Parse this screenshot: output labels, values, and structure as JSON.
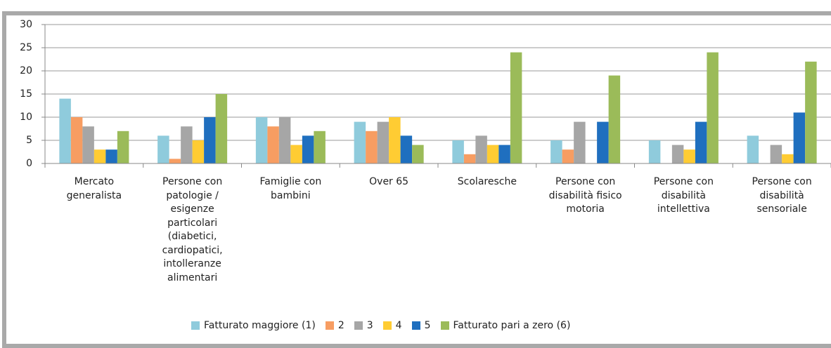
{
  "chart_data": {
    "type": "bar",
    "categories": [
      "Mercato generalista",
      "Persone con patologie / esigenze particolari (diabetici, cardiopatici, intolleranze alimentari",
      "Famiglie con bambini",
      "Over 65",
      "Scolaresche",
      "Persone con disabilità fisico motoria",
      "Persone con disabilità intellettiva",
      "Persone con disabilità sensoriale"
    ],
    "series": [
      {
        "name": "Fatturato maggiore (1)",
        "color": "#8fcbdc",
        "values": [
          14,
          6,
          10,
          9,
          5,
          5,
          5,
          6
        ]
      },
      {
        "name": "2",
        "color": "#f79d62",
        "values": [
          10,
          1,
          8,
          7,
          2,
          3,
          0,
          0
        ]
      },
      {
        "name": "3",
        "color": "#a6a6a6",
        "values": [
          8,
          8,
          10,
          9,
          6,
          9,
          4,
          4
        ]
      },
      {
        "name": "4",
        "color": "#ffcc33",
        "values": [
          3,
          5,
          4,
          10,
          4,
          0,
          3,
          2
        ]
      },
      {
        "name": "5",
        "color": "#1f6fbf",
        "values": [
          3,
          10,
          6,
          6,
          4,
          9,
          9,
          11
        ]
      },
      {
        "name": "Fatturato pari a zero (6)",
        "color": "#9bbb59",
        "values": [
          7,
          15,
          7,
          4,
          24,
          19,
          24,
          22
        ]
      }
    ],
    "ylim": [
      0,
      30
    ],
    "yticks": [
      0,
      5,
      10,
      15,
      20,
      25,
      30
    ],
    "grid": true,
    "legend": "bottom"
  }
}
